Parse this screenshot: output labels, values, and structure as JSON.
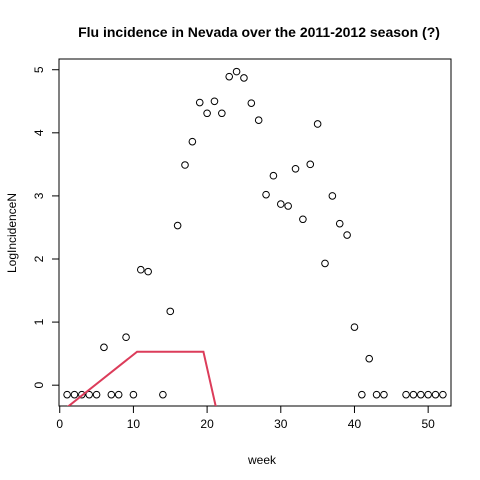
{
  "chart_data": {
    "type": "scatter",
    "title": "Flu incidence in Nevada over the 2011-2012 season (?)",
    "xlabel": "week",
    "ylabel": "LogIncidenceN",
    "xlim": [
      -0.1,
      53.1
    ],
    "ylim": [
      -0.33,
      5.17
    ],
    "x_ticks": [
      0,
      10,
      20,
      30,
      40,
      50
    ],
    "y_ticks": [
      0,
      1,
      2,
      3,
      4,
      5
    ],
    "grid": false,
    "series": [
      {
        "marker": "open-circle",
        "color": "#000000",
        "x": [
          1,
          2,
          3,
          4,
          5,
          6,
          7,
          8,
          9,
          10,
          11,
          12,
          14,
          15,
          16,
          17,
          18,
          19,
          20,
          21,
          22,
          23,
          24,
          25,
          26,
          27,
          28,
          29,
          30,
          31,
          32,
          33,
          34,
          35,
          36,
          37,
          38,
          39,
          40,
          41,
          42,
          43,
          44,
          47,
          48,
          49,
          50,
          51,
          52
        ],
        "y": [
          -0.15,
          -0.15,
          -0.15,
          -0.15,
          -0.15,
          0.6,
          -0.15,
          -0.15,
          0.76,
          -0.15,
          1.83,
          1.8,
          -0.15,
          1.17,
          2.53,
          3.49,
          3.86,
          4.48,
          4.31,
          4.5,
          4.31,
          4.89,
          4.97,
          4.87,
          4.47,
          4.2,
          3.02,
          3.32,
          2.87,
          2.84,
          3.43,
          2.63,
          3.5,
          4.14,
          1.93,
          3.0,
          2.56,
          2.38,
          0.92,
          -0.15,
          0.42,
          -0.15,
          -0.15,
          -0.15,
          -0.15,
          -0.15,
          -0.15,
          -0.15,
          -0.15
        ]
      },
      {
        "marker": "line",
        "color": "#dc3c5a",
        "x": [
          1.0,
          10.5,
          19.5,
          21.2
        ],
        "y": [
          -0.35,
          0.53,
          0.53,
          -0.35
        ]
      }
    ]
  }
}
